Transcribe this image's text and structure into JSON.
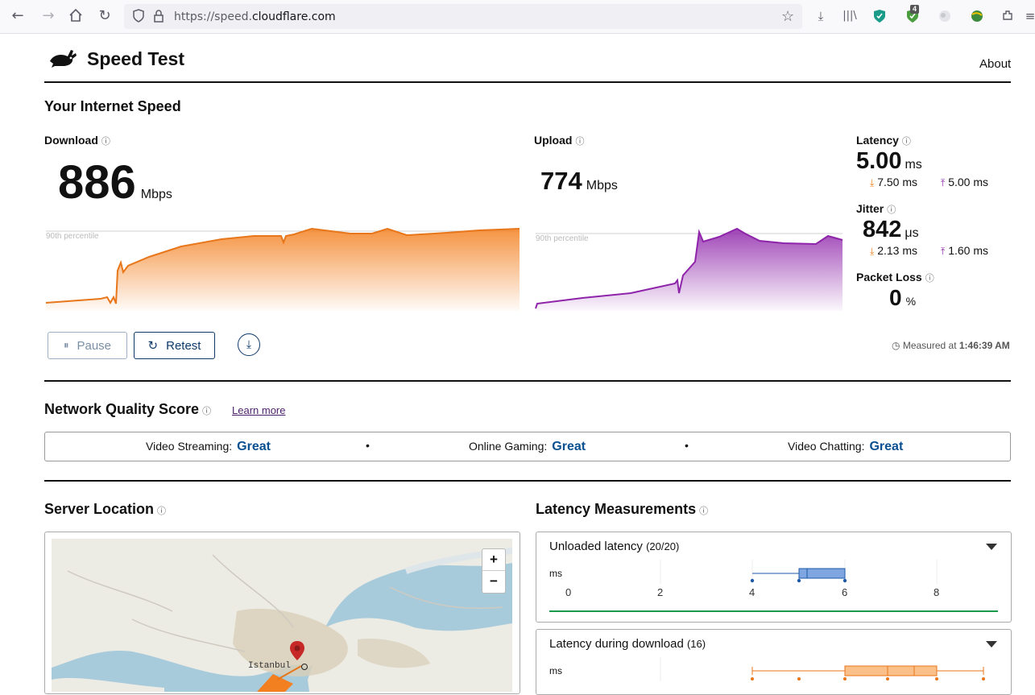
{
  "browser": {
    "url_prefix": "https://speed.",
    "url_domain": "cloudflare.com",
    "ext_badge": "4"
  },
  "header": {
    "title": "Speed Test",
    "about": "About"
  },
  "speed": {
    "title": "Your Internet Speed",
    "download": {
      "label": "Download",
      "value": "886",
      "unit": "Mbps",
      "percentile_label": "90th percentile"
    },
    "upload": {
      "label": "Upload",
      "value": "774",
      "unit": "Mbps",
      "percentile_label": "90th percentile"
    },
    "latency": {
      "label": "Latency",
      "value": "5.00",
      "unit": "ms",
      "down": "7.50 ms",
      "up": "5.00 ms"
    },
    "jitter": {
      "label": "Jitter",
      "value": "842",
      "unit": "μs",
      "down": "2.13 ms",
      "up": "1.60 ms"
    },
    "packet_loss": {
      "label": "Packet Loss",
      "value": "0",
      "unit": "%"
    },
    "pause": "Pause",
    "retest": "Retest",
    "measured_prefix": "Measured at",
    "measured_time": "1:46:39 AM"
  },
  "network_quality": {
    "title": "Network Quality Score",
    "learn_more": "Learn more",
    "items": [
      {
        "label": "Video Streaming:",
        "value": "Great"
      },
      {
        "label": "Online Gaming:",
        "value": "Great"
      },
      {
        "label": "Video Chatting:",
        "value": "Great"
      }
    ]
  },
  "server": {
    "title": "Server Location",
    "city": "Istanbul",
    "zoom_in": "+",
    "zoom_out": "−"
  },
  "latency_measurements": {
    "title": "Latency Measurements",
    "unloaded": {
      "label": "Unloaded latency",
      "count": "(20/20)",
      "unit": "ms",
      "ticks": [
        "0",
        "2",
        "4",
        "6",
        "8"
      ]
    },
    "during_download": {
      "label": "Latency during download",
      "count": "(16)",
      "unit": "ms"
    }
  },
  "colors": {
    "download": "#f38020",
    "upload": "#8e24aa",
    "accent": "#0a5091",
    "good": "#1a9b4b"
  }
}
